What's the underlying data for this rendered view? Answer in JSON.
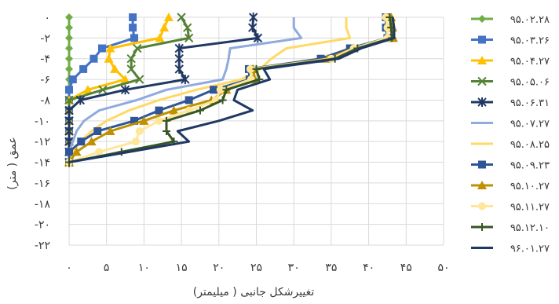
{
  "chart_data": {
    "type": "line",
    "xlabel": "تغییرشکل جانبی ( میلیمتر)",
    "ylabel": "عمق ( متر)",
    "xlim": [
      0,
      50
    ],
    "ylim": [
      -22,
      0
    ],
    "x_ticks": [
      0,
      5,
      10,
      15,
      20,
      25,
      30,
      35,
      40,
      45,
      50
    ],
    "x_tick_labels": [
      "۰",
      "۵",
      "۱۰",
      "۱۵",
      "۲۰",
      "۲۵",
      "۳۰",
      "۳۵",
      "۴۰",
      "۴۵",
      "۵۰"
    ],
    "y_ticks": [
      0,
      -2,
      -4,
      -6,
      -8,
      -10,
      -12,
      -14,
      -16,
      -18,
      -20,
      -22
    ],
    "y_tick_labels": [
      "۰",
      "-۲",
      "-۴",
      "-۶",
      "-۸",
      "-۱۰",
      "-۱۲",
      "-۱۴",
      "-۱۶",
      "-۱۸",
      "-۲۰",
      "-۲۲"
    ],
    "grid": true,
    "legend_position": "right",
    "series": [
      {
        "name": "۹۵.۰۲.۲۸",
        "color": "#70ad47",
        "marker": "diamond",
        "points": [
          [
            0,
            0
          ],
          [
            0,
            -1
          ],
          [
            0,
            -2
          ],
          [
            0,
            -3
          ],
          [
            0,
            -4
          ],
          [
            0,
            -5
          ],
          [
            0,
            -6
          ],
          [
            0,
            -7
          ],
          [
            0,
            -8
          ],
          [
            0,
            -9
          ],
          [
            0,
            -10
          ],
          [
            0,
            -11
          ],
          [
            0,
            -12
          ],
          [
            0,
            -13
          ],
          [
            0,
            -14
          ]
        ]
      },
      {
        "name": "۹۵.۰۳.۲۶",
        "color": "#4472c4",
        "marker": "square",
        "points": [
          [
            8.5,
            0
          ],
          [
            8.5,
            -1
          ],
          [
            8.7,
            -2
          ],
          [
            4.4,
            -3
          ],
          [
            3.3,
            -4
          ],
          [
            1.9,
            -5
          ],
          [
            0.5,
            -6
          ],
          [
            0,
            -7
          ],
          [
            0,
            -8
          ],
          [
            0,
            -9
          ],
          [
            0,
            -10
          ],
          [
            0,
            -11
          ],
          [
            0,
            -12
          ],
          [
            0,
            -13
          ],
          [
            0,
            -14
          ]
        ]
      },
      {
        "name": "۹۵.۰۴.۲۷",
        "color": "#ffc000",
        "marker": "triangle",
        "points": [
          [
            13.3,
            0
          ],
          [
            12.7,
            -1
          ],
          [
            12.1,
            -2
          ],
          [
            5.5,
            -3
          ],
          [
            5.3,
            -4
          ],
          [
            6.1,
            -5
          ],
          [
            7.5,
            -6
          ],
          [
            2.5,
            -7
          ],
          [
            0,
            -8
          ],
          [
            0,
            -9
          ],
          [
            0,
            -10
          ],
          [
            0,
            -11
          ],
          [
            0,
            -12
          ],
          [
            0,
            -13
          ],
          [
            0,
            -14
          ]
        ]
      },
      {
        "name": "۹۵.۰۵.۰۶",
        "color": "#548235",
        "marker": "x",
        "points": [
          [
            15,
            0
          ],
          [
            15.8,
            -1
          ],
          [
            16,
            -2
          ],
          [
            9.1,
            -3
          ],
          [
            8.3,
            -4
          ],
          [
            8.3,
            -5
          ],
          [
            9.4,
            -6
          ],
          [
            4.5,
            -7
          ],
          [
            0,
            -8
          ],
          [
            0,
            -9
          ],
          [
            0,
            -10
          ],
          [
            0,
            -11
          ],
          [
            0,
            -12
          ],
          [
            0,
            -13
          ],
          [
            0,
            -14
          ]
        ]
      },
      {
        "name": "۹۵.۰۶.۳۱",
        "color": "#203864",
        "marker": "star",
        "points": [
          [
            24.6,
            0
          ],
          [
            24.5,
            -1
          ],
          [
            25.2,
            -2
          ],
          [
            14.7,
            -3
          ],
          [
            14.7,
            -4
          ],
          [
            14.7,
            -5
          ],
          [
            15.5,
            -6
          ],
          [
            7.5,
            -7
          ],
          [
            1.5,
            -8
          ],
          [
            0,
            -9
          ],
          [
            0,
            -10
          ],
          [
            0,
            -11
          ],
          [
            0,
            -12
          ],
          [
            0,
            -13
          ],
          [
            0,
            -14
          ]
        ]
      },
      {
        "name": "۹۵.۰۷.۲۷",
        "color": "#8faadc",
        "marker": "none",
        "points": [
          [
            30,
            0
          ],
          [
            30,
            -1
          ],
          [
            31,
            -2
          ],
          [
            21.5,
            -3
          ],
          [
            21.3,
            -4
          ],
          [
            21,
            -5
          ],
          [
            20.5,
            -6
          ],
          [
            13,
            -7
          ],
          [
            9,
            -8
          ],
          [
            4,
            -9
          ],
          [
            2,
            -10
          ],
          [
            1,
            -11
          ],
          [
            0.5,
            -12
          ],
          [
            0,
            -13
          ],
          [
            0,
            -14
          ]
        ]
      },
      {
        "name": "۹۵.۰۸.۲۵",
        "color": "#ffd966",
        "marker": "none",
        "points": [
          [
            37,
            0
          ],
          [
            37,
            -1
          ],
          [
            37.5,
            -2
          ],
          [
            29,
            -3
          ],
          [
            27,
            -4
          ],
          [
            25.5,
            -5
          ],
          [
            23,
            -6
          ],
          [
            17,
            -7
          ],
          [
            12,
            -8
          ],
          [
            8,
            -9
          ],
          [
            5,
            -10
          ],
          [
            3,
            -11
          ],
          [
            1.5,
            -12
          ],
          [
            0.5,
            -13
          ],
          [
            0,
            -14
          ]
        ]
      },
      {
        "name": "۹۵.۰۹.۲۳",
        "color": "#2f5597",
        "marker": "square",
        "points": [
          [
            42.3,
            0
          ],
          [
            42.3,
            -1
          ],
          [
            42.5,
            -2
          ],
          [
            37.5,
            -3
          ],
          [
            33.6,
            -4
          ],
          [
            24,
            -5
          ],
          [
            24.1,
            -6
          ],
          [
            19.3,
            -7
          ],
          [
            16,
            -8
          ],
          [
            12,
            -9
          ],
          [
            8.7,
            -10
          ],
          [
            3.8,
            -11
          ],
          [
            1.6,
            -12
          ],
          [
            0,
            -13
          ],
          [
            0,
            -14
          ]
        ]
      },
      {
        "name": "۹۵.۱۰.۲۷",
        "color": "#bf9000",
        "marker": "triangle",
        "points": [
          [
            43,
            0
          ],
          [
            43.2,
            -1
          ],
          [
            43.3,
            -2
          ],
          [
            38,
            -3
          ],
          [
            34.5,
            -4
          ],
          [
            24.6,
            -5
          ],
          [
            24.8,
            -6
          ],
          [
            21,
            -7
          ],
          [
            19,
            -8
          ],
          [
            14,
            -9
          ],
          [
            10,
            -10
          ],
          [
            5.5,
            -11
          ],
          [
            3,
            -12
          ],
          [
            1,
            -13
          ],
          [
            0,
            -14
          ]
        ]
      },
      {
        "name": "۹۵.۱۱.۲۷",
        "color": "#ffe699",
        "marker": "circle",
        "points": [
          [
            42.3,
            0
          ],
          [
            42.5,
            -1
          ],
          [
            42.5,
            -2
          ],
          [
            38,
            -3
          ],
          [
            35,
            -4
          ],
          [
            24.2,
            -5
          ],
          [
            24.3,
            -6
          ],
          [
            20.2,
            -7
          ],
          [
            19.6,
            -8
          ],
          [
            16,
            -9
          ],
          [
            12,
            -10
          ],
          [
            9.4,
            -11
          ],
          [
            8.9,
            -12
          ],
          [
            4,
            -13
          ],
          [
            0,
            -14
          ]
        ]
      },
      {
        "name": "۹۵.۱۲.۱۰",
        "color": "#375623",
        "marker": "plus",
        "points": [
          [
            42.8,
            0
          ],
          [
            43,
            -1
          ],
          [
            43.1,
            -2
          ],
          [
            38.5,
            -3
          ],
          [
            35.5,
            -4
          ],
          [
            25,
            -5
          ],
          [
            25.4,
            -6
          ],
          [
            21,
            -7
          ],
          [
            20.5,
            -8
          ],
          [
            17.5,
            -9
          ],
          [
            13,
            -10
          ],
          [
            13,
            -11
          ],
          [
            14,
            -12
          ],
          [
            7,
            -13
          ],
          [
            0,
            -14
          ]
        ]
      },
      {
        "name": "۹۶.۰۱.۲۷",
        "color": "#1f3864",
        "marker": "none",
        "points": [
          [
            43.2,
            0
          ],
          [
            43.4,
            -1
          ],
          [
            43.4,
            -2
          ],
          [
            39,
            -3
          ],
          [
            36,
            -4
          ],
          [
            26,
            -5
          ],
          [
            26.8,
            -6
          ],
          [
            22.5,
            -7
          ],
          [
            22,
            -8
          ],
          [
            24.5,
            -9
          ],
          [
            20,
            -10
          ],
          [
            14.5,
            -11
          ],
          [
            16,
            -12
          ],
          [
            8,
            -13
          ],
          [
            0,
            -14
          ]
        ]
      }
    ]
  }
}
